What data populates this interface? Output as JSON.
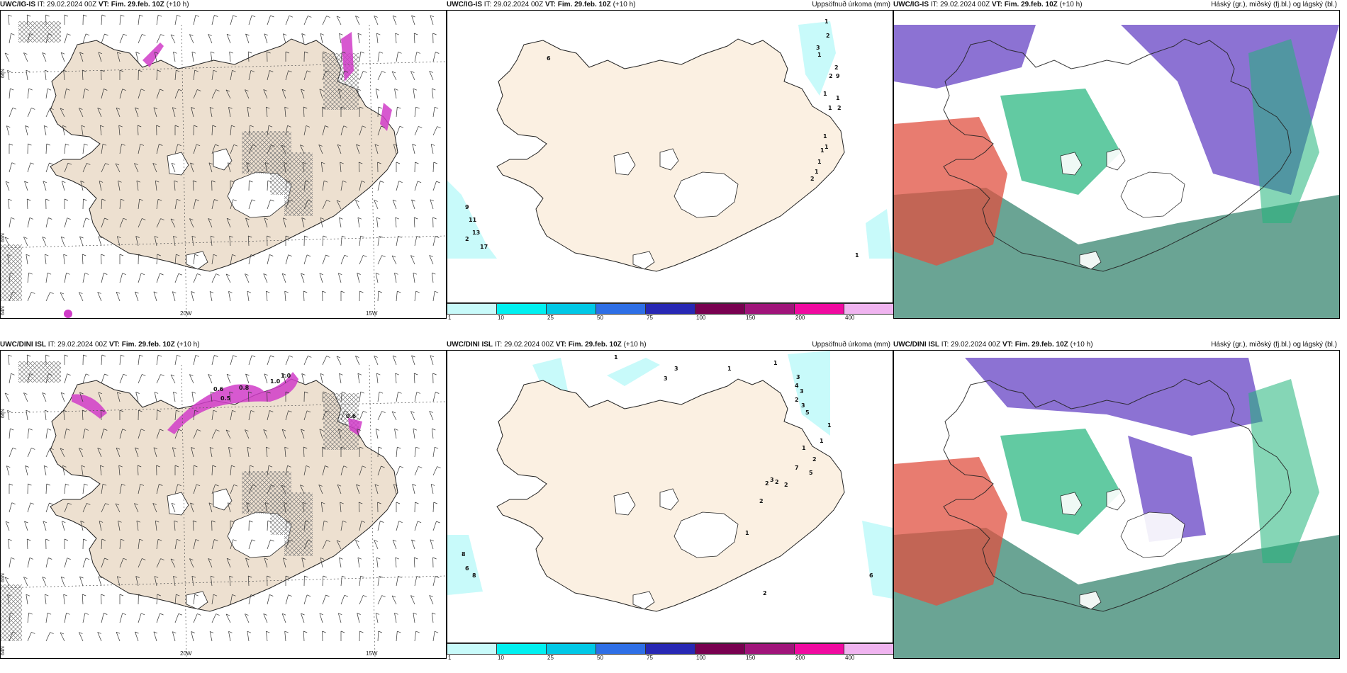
{
  "panels": [
    {
      "model": "UWC/IG-IS",
      "it_label": "IT:",
      "it": "29.02.2024 00Z",
      "vt_label": "VT:",
      "vt": "Fim. 29.feb. 10Z",
      "lead": "(+10 h)",
      "title_right": ""
    },
    {
      "model": "UWC/IG-IS",
      "it_label": "IT:",
      "it": "29.02.2024 00Z",
      "vt_label": "VT:",
      "vt": "Fim. 29.feb. 10Z",
      "lead": "(+10 h)",
      "title_right": "Uppsöfnuð úrkoma (mm)"
    },
    {
      "model": "UWC/IG-IS",
      "it_label": "IT:",
      "it": "29.02.2024 00Z",
      "vt_label": "VT:",
      "vt": "Fim. 29.feb. 10Z",
      "lead": "(+10 h)",
      "title_right": "Háský (gr.), miðský (fj.bl.) og lágský (bl.)"
    },
    {
      "model": "UWC/DINI ISL",
      "it_label": "IT:",
      "it": "29.02.2024 00Z",
      "vt_label": "VT:",
      "vt": "Fim. 29.feb. 10Z",
      "lead": "(+10 h)",
      "title_right": ""
    },
    {
      "model": "UWC/DINI ISL",
      "it_label": "IT:",
      "it": "29.02.2024 00Z",
      "vt_label": "VT:",
      "vt": "Fim. 29.feb. 10Z",
      "lead": "(+10 h)",
      "title_right": "Uppsöfnuð úrkoma (mm)"
    },
    {
      "model": "UWC/DINI ISL",
      "it_label": "IT:",
      "it": "29.02.2024 00Z",
      "vt_label": "VT:",
      "vt": "Fim. 29.feb. 10Z",
      "lead": "(+10 h)",
      "title_right": "Háský (gr.), miðský (fj.bl.) og lágský (bl.)"
    }
  ],
  "lon_labels": [
    "20W",
    "15W"
  ],
  "lat_labels": [
    "66N",
    "65N",
    "64N"
  ],
  "colorbar": {
    "labels": [
      "1",
      "10",
      "25",
      "50",
      "75",
      "100",
      "150",
      "200",
      "400"
    ],
    "colors": [
      "#c8fafa",
      "#00f0f0",
      "#00c8e6",
      "#2e6fe6",
      "#2828b4",
      "#780050",
      "#a0147a",
      "#f00aa0",
      "#f0b4f0"
    ]
  },
  "precip_labels_top": [
    "1",
    "2",
    "3",
    "1",
    "2",
    "9",
    "1",
    "1",
    "2",
    "1",
    "2",
    "1",
    "1",
    "1",
    "1",
    "1",
    "2",
    "9",
    "11",
    "13",
    "2",
    "17",
    "1",
    "6"
  ],
  "precip_labels_bottom": [
    "1",
    "3",
    "3",
    "1",
    "1",
    "3",
    "4",
    "3",
    "2",
    "3",
    "5",
    "1",
    "1",
    "2",
    "5",
    "7",
    "2",
    "2",
    "2",
    "3",
    "1",
    "2",
    "1",
    "8",
    "6",
    "8",
    "6",
    "2"
  ],
  "ice_labels_bottom": [
    "0.6",
    "0.8",
    "0.5",
    "1.0",
    "1.0",
    "0.6"
  ],
  "colors": {
    "land": "#ede0d0",
    "land_precip": "#fbf0e2",
    "glacier": "#ffffff",
    "hatch": "#7a7a7a",
    "magenta": "#d03cc8",
    "cloud_high": "#6f4fc8",
    "cloud_mid": "#20b47a",
    "cloud_low": "#e05040",
    "sea_cloud": "#5a9a88"
  }
}
